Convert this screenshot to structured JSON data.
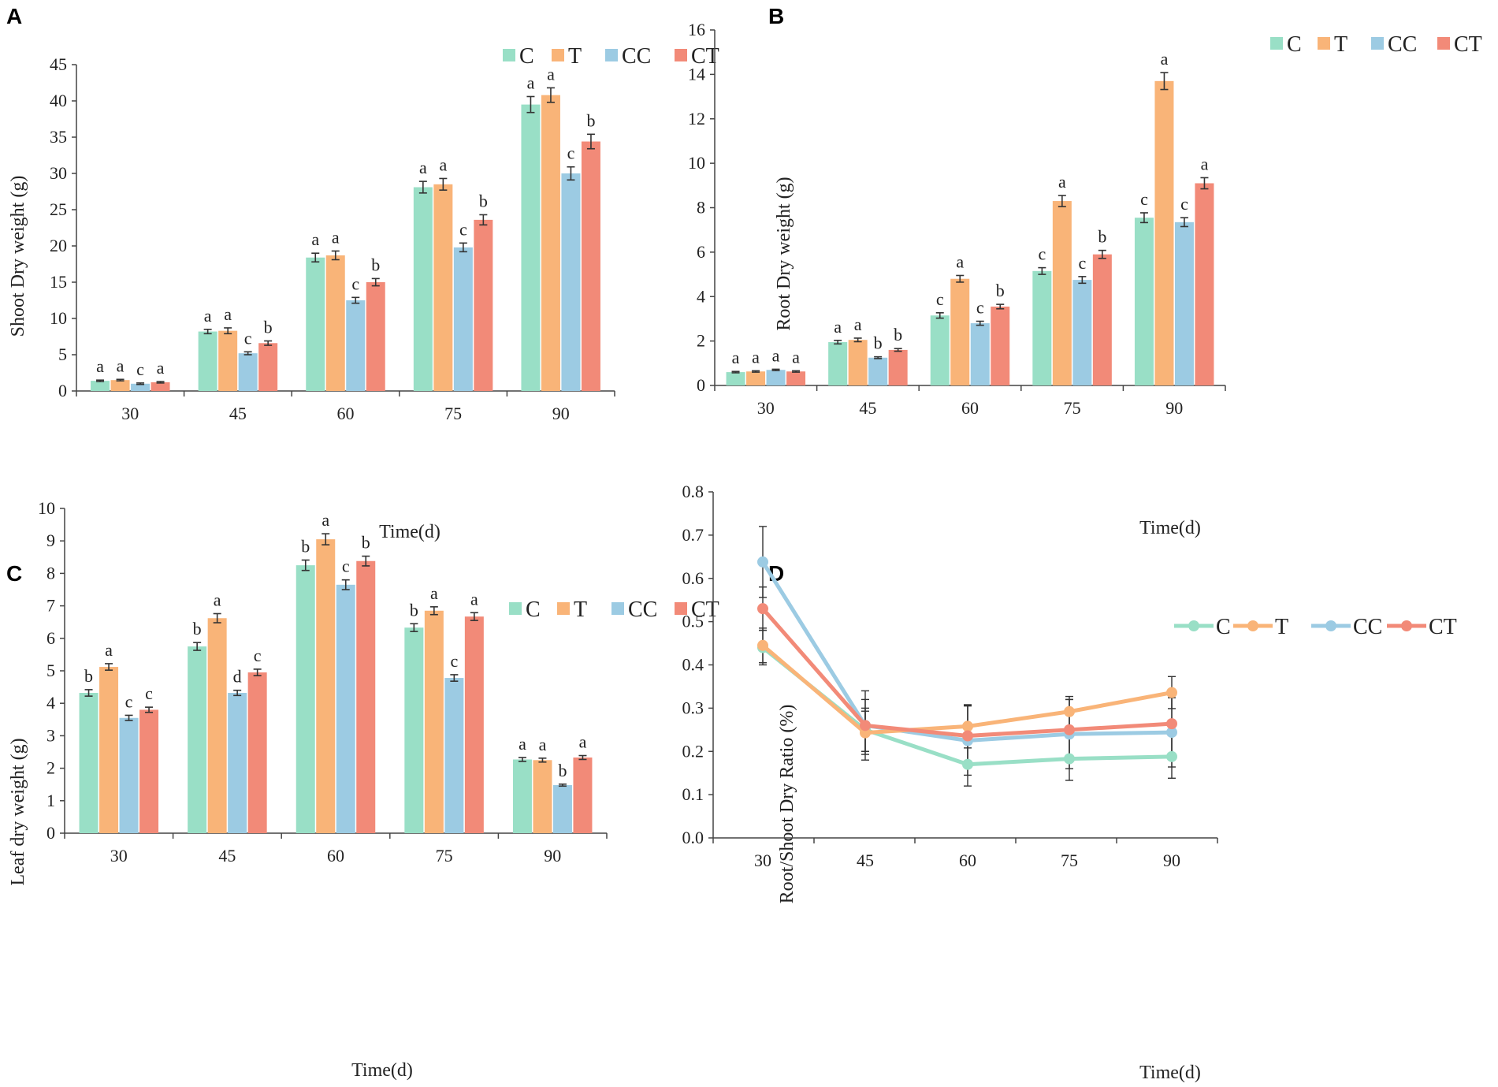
{
  "series_names": [
    "C",
    "T",
    "CC",
    "CT"
  ],
  "colors": {
    "C": "#99dfc6",
    "T": "#f9b478",
    "CC": "#9ccbe3",
    "CT": "#f28a78",
    "axis": "#444444",
    "errorbar": "#333333"
  },
  "chart_data": [
    {
      "panel": "A",
      "type": "bar",
      "xlabel": "Time(d)",
      "ylabel": "Shoot Dry weight (g)",
      "ylim": [
        0,
        45
      ],
      "yticks": [
        0,
        5,
        10,
        15,
        20,
        25,
        30,
        35,
        40,
        45
      ],
      "categories": [
        "30",
        "45",
        "60",
        "75",
        "90"
      ],
      "legend_position": "top-right",
      "series": [
        {
          "name": "C",
          "values": [
            1.4,
            8.2,
            18.4,
            28.1,
            39.5
          ],
          "errors": [
            0.1,
            0.3,
            0.6,
            0.8,
            1.1
          ],
          "labels": [
            "a",
            "a",
            "a",
            "a",
            "a"
          ]
        },
        {
          "name": "T",
          "values": [
            1.5,
            8.3,
            18.7,
            28.5,
            40.8
          ],
          "errors": [
            0.1,
            0.4,
            0.6,
            0.8,
            1.0
          ],
          "labels": [
            "a",
            "a",
            "a",
            "a",
            "a"
          ]
        },
        {
          "name": "CC",
          "values": [
            1.0,
            5.2,
            12.5,
            19.8,
            30.0
          ],
          "errors": [
            0.1,
            0.2,
            0.4,
            0.6,
            0.9
          ],
          "labels": [
            "c",
            "c",
            "c",
            "c",
            "c"
          ]
        },
        {
          "name": "CT",
          "values": [
            1.2,
            6.6,
            15.0,
            23.6,
            34.4
          ],
          "errors": [
            0.1,
            0.3,
            0.5,
            0.7,
            1.0
          ],
          "labels": [
            "a",
            "b",
            "b",
            "b",
            "b"
          ]
        }
      ]
    },
    {
      "panel": "B",
      "type": "bar",
      "xlabel": "Time(d)",
      "ylabel": "Root Dry weight (g)",
      "ylim": [
        0,
        16
      ],
      "yticks": [
        0,
        2,
        4,
        6,
        8,
        10,
        12,
        14,
        16
      ],
      "categories": [
        "30",
        "45",
        "60",
        "75",
        "90"
      ],
      "legend_position": "top-right",
      "series": [
        {
          "name": "C",
          "values": [
            0.6,
            1.95,
            3.15,
            5.15,
            7.55
          ],
          "errors": [
            0.03,
            0.08,
            0.12,
            0.15,
            0.22
          ],
          "labels": [
            "a",
            "a",
            "c",
            "c",
            "c"
          ]
        },
        {
          "name": "T",
          "values": [
            0.63,
            2.05,
            4.8,
            8.3,
            13.7
          ],
          "errors": [
            0.03,
            0.08,
            0.15,
            0.25,
            0.38
          ],
          "labels": [
            "a",
            "a",
            "a",
            "a",
            "a"
          ]
        },
        {
          "name": "CC",
          "values": [
            0.7,
            1.25,
            2.8,
            4.75,
            7.35
          ],
          "errors": [
            0.03,
            0.04,
            0.09,
            0.15,
            0.2
          ],
          "labels": [
            "a",
            "b",
            "c",
            "c",
            "c"
          ]
        },
        {
          "name": "CT",
          "values": [
            0.63,
            1.6,
            3.55,
            5.9,
            9.1
          ],
          "errors": [
            0.03,
            0.06,
            0.1,
            0.18,
            0.25
          ],
          "labels": [
            "a",
            "b",
            "b",
            "b",
            "a"
          ]
        }
      ]
    },
    {
      "panel": "C",
      "type": "bar",
      "xlabel": "Time(d)",
      "ylabel": "Leaf dry weight (g)",
      "ylim": [
        0,
        10
      ],
      "yticks": [
        0,
        1,
        2,
        3,
        4,
        5,
        6,
        7,
        8,
        9,
        10
      ],
      "categories": [
        "30",
        "45",
        "60",
        "75",
        "90"
      ],
      "legend_position": "top-right",
      "series": [
        {
          "name": "C",
          "values": [
            4.32,
            5.75,
            8.25,
            6.33,
            2.27
          ],
          "errors": [
            0.1,
            0.12,
            0.16,
            0.12,
            0.06
          ],
          "labels": [
            "b",
            "b",
            "b",
            "b",
            "a"
          ]
        },
        {
          "name": "T",
          "values": [
            5.12,
            6.62,
            9.05,
            6.85,
            2.25
          ],
          "errors": [
            0.1,
            0.14,
            0.17,
            0.12,
            0.06
          ],
          "labels": [
            "a",
            "a",
            "a",
            "a",
            "a"
          ]
        },
        {
          "name": "CC",
          "values": [
            3.55,
            4.32,
            7.65,
            4.78,
            1.48
          ],
          "errors": [
            0.08,
            0.08,
            0.15,
            0.1,
            0.03
          ],
          "labels": [
            "c",
            "d",
            "c",
            "c",
            "b"
          ]
        },
        {
          "name": "CT",
          "values": [
            3.8,
            4.95,
            8.38,
            6.67,
            2.33
          ],
          "errors": [
            0.08,
            0.1,
            0.15,
            0.12,
            0.06
          ],
          "labels": [
            "c",
            "c",
            "b",
            "a",
            "a"
          ]
        }
      ]
    },
    {
      "panel": "D",
      "type": "line",
      "xlabel": "Time(d)",
      "ylabel": "Root/Shoot Dry Ratio (%)",
      "ylim": [
        0,
        0.8
      ],
      "yticks": [
        "0.0",
        "0.1",
        "0.2",
        "0.3",
        "0.4",
        "0.5",
        "0.6",
        "0.7",
        "0.8"
      ],
      "categories": [
        "30",
        "45",
        "60",
        "75",
        "90"
      ],
      "legend_position": "top-right",
      "series": [
        {
          "name": "C",
          "values": [
            0.44,
            0.25,
            0.17,
            0.183,
            0.188
          ],
          "errors": [
            0.04,
            0.05,
            0.05,
            0.05,
            0.05
          ]
        },
        {
          "name": "T",
          "values": [
            0.445,
            0.243,
            0.258,
            0.292,
            0.336
          ],
          "errors": [
            0.04,
            0.05,
            0.05,
            0.035,
            0.037
          ]
        },
        {
          "name": "CC",
          "values": [
            0.638,
            0.26,
            0.225,
            0.24,
            0.244
          ],
          "errors": [
            0.082,
            0.08,
            0.08,
            0.08,
            0.08
          ]
        },
        {
          "name": "CT",
          "values": [
            0.53,
            0.26,
            0.236,
            0.25,
            0.264
          ],
          "errors": [
            0.05,
            0.06,
            0.07,
            0.07,
            0.07
          ]
        }
      ]
    }
  ]
}
